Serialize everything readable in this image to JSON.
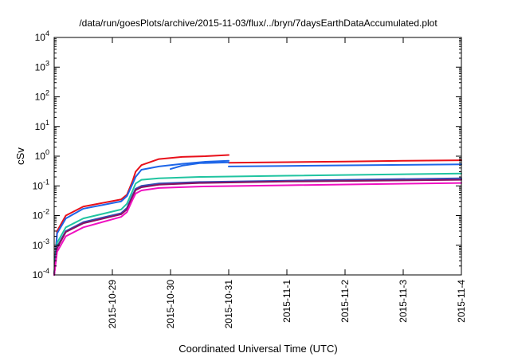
{
  "chart_data": {
    "type": "line",
    "title": "/data/run/goesPlots/archive/2015-11-03/flux/../bryn/7daysEarthDataAccumulated.plot",
    "xlabel": "Coordinated Universal Time (UTC)",
    "ylabel": "cSv",
    "yscale": "log",
    "ylim": [
      0.0001,
      10000
    ],
    "xlim": [
      "2015-10-28 00:00",
      "2015-11-04 00:00"
    ],
    "x_ticks": [
      "2015-10-29",
      "2015-10-30",
      "2015-10-31",
      "2015-11-1",
      "2015-11-2",
      "2015-11-3",
      "2015-11-4"
    ],
    "y_ticks": [
      {
        "base": "10",
        "exp": "-4"
      },
      {
        "base": "10",
        "exp": "-3"
      },
      {
        "base": "10",
        "exp": "-2"
      },
      {
        "base": "10",
        "exp": "-1"
      },
      {
        "base": "10",
        "exp": "0"
      },
      {
        "base": "10",
        "exp": "1"
      },
      {
        "base": "10",
        "exp": "2"
      },
      {
        "base": "10",
        "exp": "3"
      },
      {
        "base": "10",
        "exp": "4"
      }
    ],
    "grid": false,
    "legend": "none",
    "series": [
      {
        "color": "#e8101a",
        "points": [
          [
            "2015-10-28 00:00",
            0.0001
          ],
          [
            "2015-10-28 01:12",
            0.003
          ],
          [
            "2015-10-28 04:48",
            0.01
          ],
          [
            "2015-10-28 12:00",
            0.02
          ],
          [
            "2015-10-29 03:36",
            0.035
          ],
          [
            "2015-10-29 06:00",
            0.05
          ],
          [
            "2015-10-29 08:24",
            0.15
          ],
          [
            "2015-10-29 09:36",
            0.3
          ],
          [
            "2015-10-29 12:00",
            0.5
          ],
          [
            "2015-10-29 19:12",
            0.8
          ],
          [
            "2015-10-30 04:48",
            0.95
          ],
          [
            "2015-10-30 14:24",
            1.0
          ],
          [
            "2015-10-31 00:00",
            1.1
          ]
        ]
      },
      {
        "color": "#e8101a",
        "points": [
          [
            "2015-10-31 00:00",
            0.6
          ],
          [
            "2015-11-01 00:00",
            0.63
          ],
          [
            "2015-11-02 00:00",
            0.66
          ],
          [
            "2015-11-03 00:00",
            0.7
          ],
          [
            "2015-11-04 00:00",
            0.73
          ]
        ]
      },
      {
        "color": "#1e66e8",
        "points": [
          [
            "2015-10-28 00:00",
            0.0001
          ],
          [
            "2015-10-28 01:12",
            0.0025
          ],
          [
            "2015-10-28 04:48",
            0.008
          ],
          [
            "2015-10-28 12:00",
            0.017
          ],
          [
            "2015-10-29 03:36",
            0.03
          ],
          [
            "2015-10-29 06:00",
            0.045
          ],
          [
            "2015-10-29 08:24",
            0.12
          ],
          [
            "2015-10-29 09:36",
            0.2
          ],
          [
            "2015-10-29 12:00",
            0.35
          ],
          [
            "2015-10-29 19:12",
            0.45
          ],
          [
            "2015-10-30 04:48",
            0.55
          ],
          [
            "2015-10-30 14:24",
            0.65
          ],
          [
            "2015-10-31 00:00",
            0.7
          ]
        ]
      },
      {
        "color": "#1e66e8",
        "points": [
          [
            "2015-10-30 00:00",
            0.37
          ],
          [
            "2015-10-30 04:48",
            0.48
          ],
          [
            "2015-10-30 12:00",
            0.58
          ],
          [
            "2015-10-31 00:00",
            0.62
          ]
        ]
      },
      {
        "color": "#1e66e8",
        "points": [
          [
            "2015-10-31 00:00",
            0.45
          ],
          [
            "2015-11-01 00:00",
            0.47
          ],
          [
            "2015-11-02 00:00",
            0.49
          ],
          [
            "2015-11-03 00:00",
            0.51
          ],
          [
            "2015-11-04 00:00",
            0.53
          ]
        ]
      },
      {
        "color": "#20c4a0",
        "points": [
          [
            "2015-10-28 00:00",
            0.0001
          ],
          [
            "2015-10-28 01:12",
            0.0012
          ],
          [
            "2015-10-28 04:48",
            0.004
          ],
          [
            "2015-10-28 12:00",
            0.008
          ],
          [
            "2015-10-29 03:36",
            0.016
          ],
          [
            "2015-10-29 06:00",
            0.025
          ],
          [
            "2015-10-29 08:24",
            0.07
          ],
          [
            "2015-10-29 09:36",
            0.12
          ],
          [
            "2015-10-29 12:00",
            0.16
          ],
          [
            "2015-10-29 19:12",
            0.18
          ],
          [
            "2015-10-30 12:00",
            0.2
          ],
          [
            "2015-11-01 00:00",
            0.22
          ],
          [
            "2015-11-04 00:00",
            0.26
          ]
        ]
      },
      {
        "color": "#3050b8",
        "points": [
          [
            "2015-10-28 00:00",
            0.0001
          ],
          [
            "2015-10-28 01:12",
            0.0009
          ],
          [
            "2015-10-28 04:48",
            0.003
          ],
          [
            "2015-10-28 12:00",
            0.006
          ],
          [
            "2015-10-29 03:36",
            0.012
          ],
          [
            "2015-10-29 06:00",
            0.018
          ],
          [
            "2015-10-29 08:24",
            0.05
          ],
          [
            "2015-10-29 09:36",
            0.08
          ],
          [
            "2015-10-29 12:00",
            0.1
          ],
          [
            "2015-10-29 19:12",
            0.12
          ],
          [
            "2015-10-30 12:00",
            0.135
          ],
          [
            "2015-11-01 00:00",
            0.15
          ],
          [
            "2015-11-04 00:00",
            0.18
          ]
        ]
      },
      {
        "color": "#8a1060",
        "points": [
          [
            "2015-10-28 00:00",
            0.0001
          ],
          [
            "2015-10-28 01:12",
            0.0008
          ],
          [
            "2015-10-28 04:48",
            0.0028
          ],
          [
            "2015-10-28 12:00",
            0.0055
          ],
          [
            "2015-10-29 03:36",
            0.011
          ],
          [
            "2015-10-29 06:00",
            0.016
          ],
          [
            "2015-10-29 08:24",
            0.045
          ],
          [
            "2015-10-29 09:36",
            0.072
          ],
          [
            "2015-10-29 12:00",
            0.09
          ],
          [
            "2015-10-29 19:12",
            0.11
          ],
          [
            "2015-10-30 12:00",
            0.125
          ],
          [
            "2015-11-01 00:00",
            0.14
          ],
          [
            "2015-11-04 00:00",
            0.16
          ]
        ]
      },
      {
        "color": "#f010c0",
        "points": [
          [
            "2015-10-28 00:00",
            0.0001
          ],
          [
            "2015-10-28 01:12",
            0.0006
          ],
          [
            "2015-10-28 04:48",
            0.002
          ],
          [
            "2015-10-28 12:00",
            0.004
          ],
          [
            "2015-10-29 03:36",
            0.009
          ],
          [
            "2015-10-29 06:00",
            0.013
          ],
          [
            "2015-10-29 08:24",
            0.035
          ],
          [
            "2015-10-29 09:36",
            0.055
          ],
          [
            "2015-10-29 12:00",
            0.07
          ],
          [
            "2015-10-29 19:12",
            0.085
          ],
          [
            "2015-10-30 12:00",
            0.095
          ],
          [
            "2015-11-01 00:00",
            0.105
          ],
          [
            "2015-11-04 00:00",
            0.125
          ]
        ]
      }
    ]
  }
}
